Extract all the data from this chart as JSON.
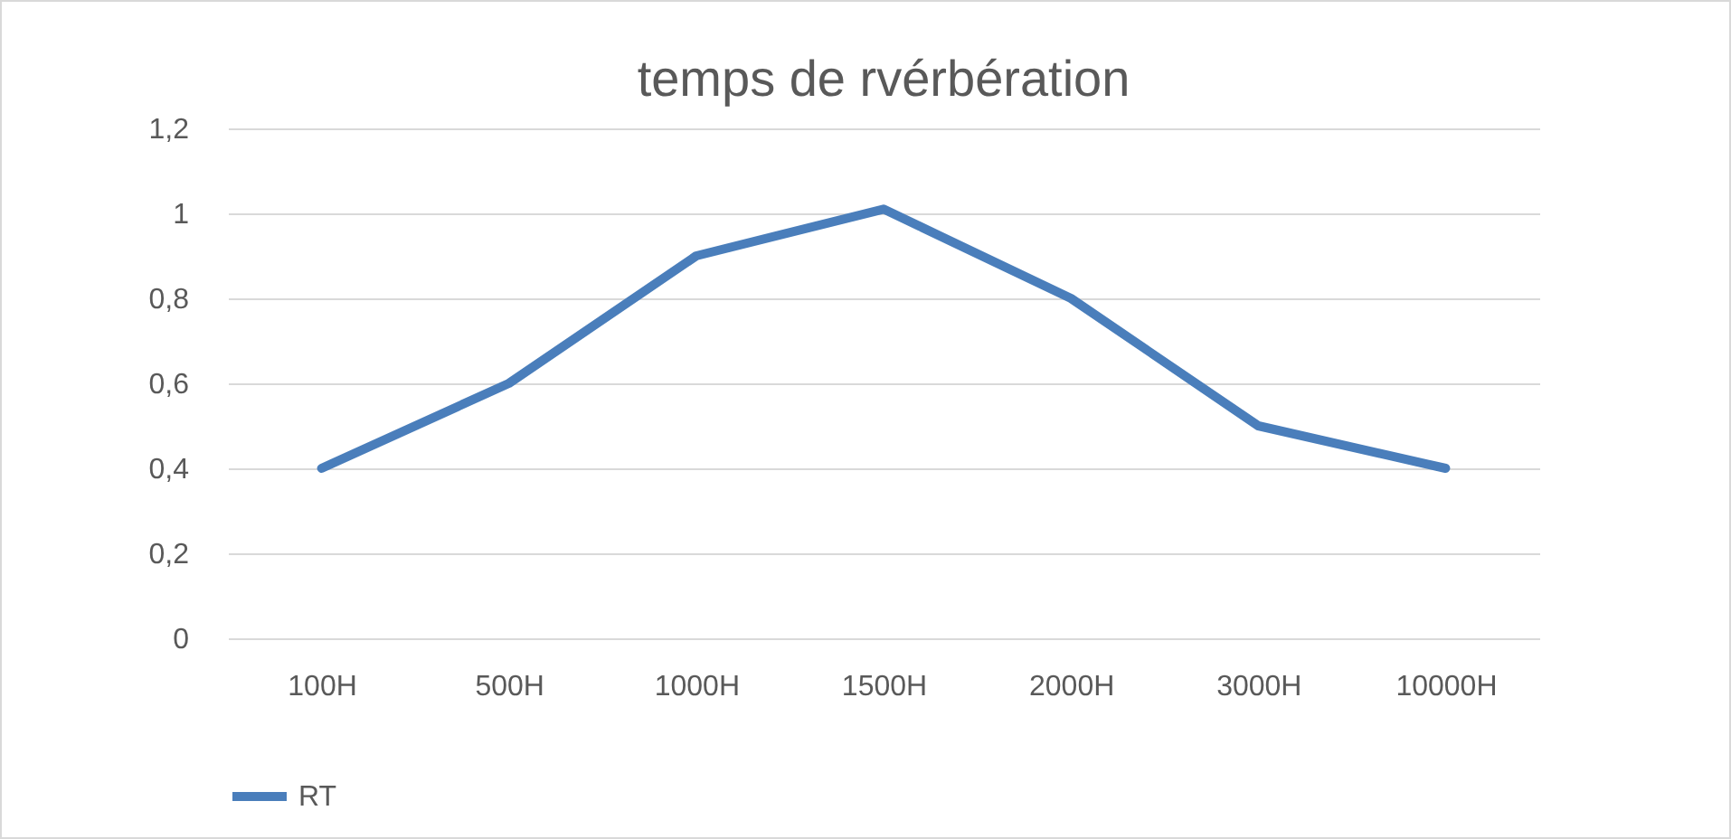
{
  "chart_data": {
    "type": "line",
    "title": "temps de rvérbération",
    "categories": [
      "100H",
      "500H",
      "1000H",
      "1500H",
      "2000H",
      "3000H",
      "10000H"
    ],
    "series": [
      {
        "name": "RT",
        "color": "#4a7ebb",
        "values": [
          0.4,
          0.6,
          0.9,
          1.01,
          0.8,
          0.5,
          0.4
        ]
      }
    ],
    "ylim": [
      0,
      1.2
    ],
    "yticks": [
      0,
      {
        "value": 0.2,
        "label": "0,2"
      },
      {
        "value": 0.4,
        "label": "0,4"
      },
      {
        "value": 0.6,
        "label": "0,6"
      },
      {
        "value": 0.8,
        "label": "0,8"
      },
      1,
      {
        "value": 1.2,
        "label": "1,2"
      }
    ],
    "grid": "y",
    "legend": "bottom"
  }
}
